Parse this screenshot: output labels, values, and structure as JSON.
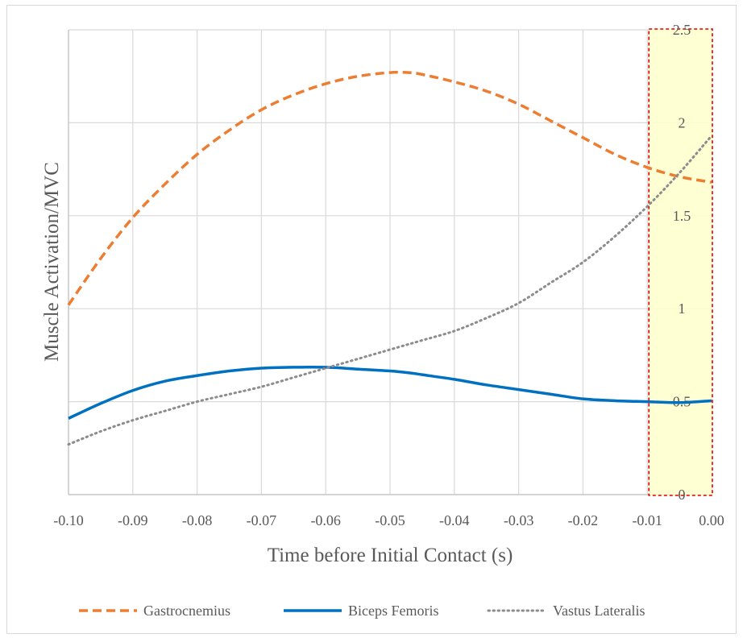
{
  "chart_data": {
    "type": "line",
    "title": "",
    "xlabel": "Time before Initial Contact (s)",
    "ylabel": "Muscle Activation/MVC",
    "xlim": [
      -0.1,
      0.0
    ],
    "ylim": [
      0,
      2.5
    ],
    "x_ticks": [
      "-0.10",
      "-0.09",
      "-0.08",
      "-0.07",
      "-0.06",
      "-0.05",
      "-0.04",
      "-0.03",
      "-0.02",
      "-0.01",
      "0.00"
    ],
    "y_ticks": [
      "0",
      "0.5",
      "1",
      "1.5",
      "2",
      "2.5"
    ],
    "grid": true,
    "legend_position": "bottom",
    "highlight_region": {
      "x_start": -0.01,
      "x_end": 0.0,
      "fill": "#ffffcc",
      "border": "#e00000"
    },
    "x": [
      -0.1,
      -0.095,
      -0.09,
      -0.085,
      -0.08,
      -0.075,
      -0.07,
      -0.065,
      -0.06,
      -0.055,
      -0.05,
      -0.047,
      -0.045,
      -0.04,
      -0.035,
      -0.03,
      -0.025,
      -0.02,
      -0.015,
      -0.01,
      -0.005,
      0.0
    ],
    "series": [
      {
        "name": "Gastrocnemius",
        "color": "#ed7d31",
        "style": "dashed",
        "values": [
          1.02,
          1.27,
          1.49,
          1.67,
          1.83,
          1.96,
          2.07,
          2.15,
          2.21,
          2.25,
          2.27,
          2.27,
          2.26,
          2.22,
          2.17,
          2.1,
          2.01,
          1.92,
          1.83,
          1.76,
          1.71,
          1.68
        ]
      },
      {
        "name": "Biceps Femoris",
        "color": "#0070c0",
        "style": "solid",
        "values": [
          0.41,
          0.49,
          0.56,
          0.61,
          0.64,
          0.665,
          0.68,
          0.685,
          0.685,
          0.675,
          0.665,
          0.655,
          0.645,
          0.62,
          0.59,
          0.565,
          0.54,
          0.515,
          0.505,
          0.5,
          0.495,
          0.505
        ]
      },
      {
        "name": "Vastus Lateralis",
        "color": "#8c8c8c",
        "style": "dotted",
        "values": [
          0.27,
          0.34,
          0.4,
          0.45,
          0.5,
          0.54,
          0.58,
          0.63,
          0.68,
          0.73,
          0.78,
          0.81,
          0.83,
          0.88,
          0.95,
          1.03,
          1.14,
          1.25,
          1.39,
          1.55,
          1.73,
          1.93
        ]
      }
    ]
  }
}
